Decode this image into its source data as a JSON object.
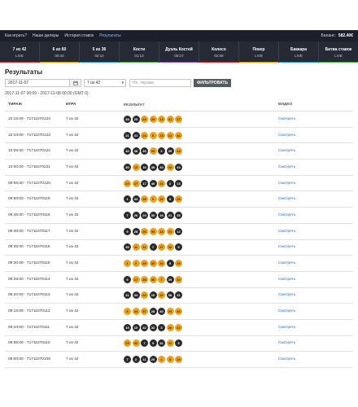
{
  "topnav": {
    "links": [
      "Как играть?",
      "Наши дилеры",
      "История ставок",
      "Результаты"
    ],
    "balance_label": "Баланс:",
    "balance_value": "582.40€"
  },
  "game_tabs": [
    {
      "name": "7 из 42",
      "time": "LIVE",
      "color": "#e6353a"
    },
    {
      "name": "6 из 60",
      "time": "00:33",
      "color": "#f0a019"
    },
    {
      "name": "5 из 36",
      "time": "02:12",
      "color": "#2f9be0"
    },
    {
      "name": "Кости",
      "time": "01:13",
      "color": "#52b848"
    },
    {
      "name": "Дуэль Костей",
      "time": "00:17",
      "color": "#9b59d0"
    },
    {
      "name": "Колесо",
      "time": "02:08",
      "color": "#e6353a"
    },
    {
      "name": "Покер",
      "time": "LIVE",
      "color": "#f0a019"
    },
    {
      "name": "Баккара",
      "time": "LIVE",
      "color": "#2f9be0"
    },
    {
      "name": "Битва ставок",
      "time": "LIVE",
      "color": "#52b848"
    }
  ],
  "page_title": "Результаты",
  "filters": {
    "date": "2017-11-07",
    "calendar_icon": "calendar-icon",
    "game_select": "7 из 42",
    "draw_placeholder": "Но. тиража",
    "filter_button": "ФИЛЬТРОВАТЬ"
  },
  "date_range": "2017-11-07 00:00 - 2017-11-08 00:00 (GMT 0)",
  "table": {
    "headers": [
      "ТИРАЖ",
      "ИГРА",
      "РЕЗУЛЬТАТ",
      "ВИДЕО"
    ],
    "rows": [
      {
        "draw": "10:15:00 - 71711070124",
        "game": "7 из 42",
        "balls": [
          {
            "n": "38",
            "c": "b"
          },
          {
            "n": "25",
            "c": "b"
          },
          {
            "n": "29",
            "c": "o"
          },
          {
            "n": "20",
            "c": "o"
          },
          {
            "n": "13",
            "c": "o"
          },
          {
            "n": "41",
            "c": "o"
          },
          {
            "n": "27",
            "c": "o"
          }
        ],
        "video": "Смотреть"
      },
      {
        "draw": "10:10:00 - 71711070123",
        "game": "7 из 42",
        "balls": [
          {
            "n": "21",
            "c": "b"
          },
          {
            "n": "31",
            "c": "b"
          },
          {
            "n": "24",
            "c": "o"
          },
          {
            "n": "5",
            "c": "o"
          },
          {
            "n": "15",
            "c": "o"
          },
          {
            "n": "12",
            "c": "o"
          },
          {
            "n": "42",
            "c": "o"
          }
        ],
        "video": "Смотреть"
      },
      {
        "draw": "10:05:00 - 71711070122",
        "game": "7 из 42",
        "balls": [
          {
            "n": "40",
            "c": "b"
          },
          {
            "n": "38",
            "c": "b"
          },
          {
            "n": "30",
            "c": "b"
          },
          {
            "n": "25",
            "c": "o"
          },
          {
            "n": "2",
            "c": "b"
          },
          {
            "n": "35",
            "c": "b"
          },
          {
            "n": "24",
            "c": "o"
          }
        ],
        "video": "Смотреть"
      },
      {
        "draw": "10:00:00 - 71711070121",
        "game": "7 из 42",
        "balls": [
          {
            "n": "30",
            "c": "b"
          },
          {
            "n": "13",
            "c": "o"
          },
          {
            "n": "16",
            "c": "b"
          },
          {
            "n": "38",
            "c": "b"
          },
          {
            "n": "33",
            "c": "b"
          },
          {
            "n": "22",
            "c": "o"
          },
          {
            "n": "34",
            "c": "b"
          }
        ],
        "video": "Смотреть"
      },
      {
        "draw": "09:55:00 - 71711070120",
        "game": "7 из 42",
        "balls": [
          {
            "n": "20",
            "c": "o"
          },
          {
            "n": "27",
            "c": "o"
          },
          {
            "n": "17",
            "c": "b"
          },
          {
            "n": "40",
            "c": "b"
          },
          {
            "n": "26",
            "c": "o"
          },
          {
            "n": "2",
            "c": "b"
          },
          {
            "n": "13",
            "c": "b"
          }
        ],
        "video": "Смотреть"
      },
      {
        "draw": "09:50:00 - 71711070119",
        "game": "7 из 42",
        "balls": [
          {
            "n": "1",
            "c": "b"
          },
          {
            "n": "34",
            "c": "b"
          },
          {
            "n": "38",
            "c": "o"
          },
          {
            "n": "3",
            "c": "o"
          },
          {
            "n": "24",
            "c": "o"
          },
          {
            "n": "9",
            "c": "b"
          },
          {
            "n": "25",
            "c": "o"
          }
        ],
        "video": "Смотреть"
      },
      {
        "draw": "09:45:00 - 71711070118",
        "game": "7 из 42",
        "balls": [
          {
            "n": "7",
            "c": "b"
          },
          {
            "n": "26",
            "c": "b"
          },
          {
            "n": "23",
            "c": "b"
          },
          {
            "n": "30",
            "c": "b"
          },
          {
            "n": "16",
            "c": "b"
          },
          {
            "n": "21",
            "c": "b"
          },
          {
            "n": "35",
            "c": "b"
          }
        ],
        "video": "Смотреть"
      },
      {
        "draw": "09:40:00 - 71711070117",
        "game": "7 из 42",
        "balls": [
          {
            "n": "9",
            "c": "b"
          },
          {
            "n": "28",
            "c": "b"
          },
          {
            "n": "26",
            "c": "o"
          },
          {
            "n": "39",
            "c": "o"
          },
          {
            "n": "18",
            "c": "o"
          },
          {
            "n": "21",
            "c": "o"
          },
          {
            "n": "12",
            "c": "b"
          }
        ],
        "video": "Смотреть"
      },
      {
        "draw": "09:35:00 - 71711070116",
        "game": "7 из 42",
        "balls": [
          {
            "n": "30",
            "c": "b"
          },
          {
            "n": "11",
            "c": "o"
          },
          {
            "n": "11",
            "c": "o"
          },
          {
            "n": "7",
            "c": "b"
          },
          {
            "n": "27",
            "c": "o"
          },
          {
            "n": "33",
            "c": "o"
          },
          {
            "n": "5",
            "c": "b"
          }
        ],
        "video": "Смотреть"
      },
      {
        "draw": "09:30:00 - 71711070115",
        "game": "7 из 42",
        "balls": [
          {
            "n": "1",
            "c": "o"
          },
          {
            "n": "2",
            "c": "o"
          },
          {
            "n": "29",
            "c": "o"
          },
          {
            "n": "30",
            "c": "o"
          },
          {
            "n": "16",
            "c": "o"
          },
          {
            "n": "5",
            "c": "b"
          },
          {
            "n": "26",
            "c": "o"
          }
        ],
        "video": "Смотреть"
      },
      {
        "draw": "09:25:00 - 71711070114",
        "game": "7 из 42",
        "balls": [
          {
            "n": "9",
            "c": "b"
          },
          {
            "n": "17",
            "c": "o"
          },
          {
            "n": "28",
            "c": "o"
          },
          {
            "n": "36",
            "c": "o"
          },
          {
            "n": "7",
            "c": "o"
          },
          {
            "n": "39",
            "c": "b"
          },
          {
            "n": "32",
            "c": "o"
          }
        ],
        "video": "Смотреть"
      },
      {
        "draw": "09:20:00 - 71711070113",
        "game": "7 из 42",
        "balls": [
          {
            "n": "21",
            "c": "b"
          },
          {
            "n": "34",
            "c": "b"
          },
          {
            "n": "24",
            "c": "o"
          },
          {
            "n": "10",
            "c": "b"
          },
          {
            "n": "26",
            "c": "o"
          },
          {
            "n": "38",
            "c": "b"
          },
          {
            "n": "31",
            "c": "b"
          }
        ],
        "video": "Смотреть"
      },
      {
        "draw": "09:15:00 - 71711070112",
        "game": "7 из 42",
        "balls": [
          {
            "n": "5",
            "c": "o"
          },
          {
            "n": "24",
            "c": "o"
          },
          {
            "n": "37",
            "c": "o"
          },
          {
            "n": "28",
            "c": "b"
          },
          {
            "n": "40",
            "c": "b"
          },
          {
            "n": "23",
            "c": "o"
          },
          {
            "n": "26",
            "c": "o"
          }
        ],
        "video": "Смотреть"
      },
      {
        "draw": "09:10:00 - 71711070111",
        "game": "7 из 42",
        "balls": [
          {
            "n": "19",
            "c": "b"
          },
          {
            "n": "10",
            "c": "b"
          },
          {
            "n": "42",
            "c": "b"
          },
          {
            "n": "33",
            "c": "b"
          },
          {
            "n": "3",
            "c": "b"
          },
          {
            "n": "26",
            "c": "o"
          },
          {
            "n": "22",
            "c": "o"
          }
        ],
        "video": "Смотреть"
      },
      {
        "draw": "09:05:00 - 71711070110",
        "game": "7 из 42",
        "balls": [
          {
            "n": "29",
            "c": "o"
          },
          {
            "n": "32",
            "c": "o"
          },
          {
            "n": "7",
            "c": "b"
          },
          {
            "n": "9",
            "c": "b"
          },
          {
            "n": "41",
            "c": "b"
          },
          {
            "n": "22",
            "c": "o"
          },
          {
            "n": "3",
            "c": "b"
          }
        ],
        "video": "Смотреть"
      },
      {
        "draw": "09:00:00 - 71711070109",
        "game": "7 из 42",
        "balls": [
          {
            "n": "7",
            "c": "b"
          },
          {
            "n": "2",
            "c": "b"
          },
          {
            "n": "11",
            "c": "b"
          },
          {
            "n": "20",
            "c": "b"
          },
          {
            "n": "1",
            "c": "o"
          },
          {
            "n": "5",
            "c": "o"
          },
          {
            "n": "22",
            "c": "o"
          }
        ],
        "video": "Смотреть"
      }
    ]
  }
}
